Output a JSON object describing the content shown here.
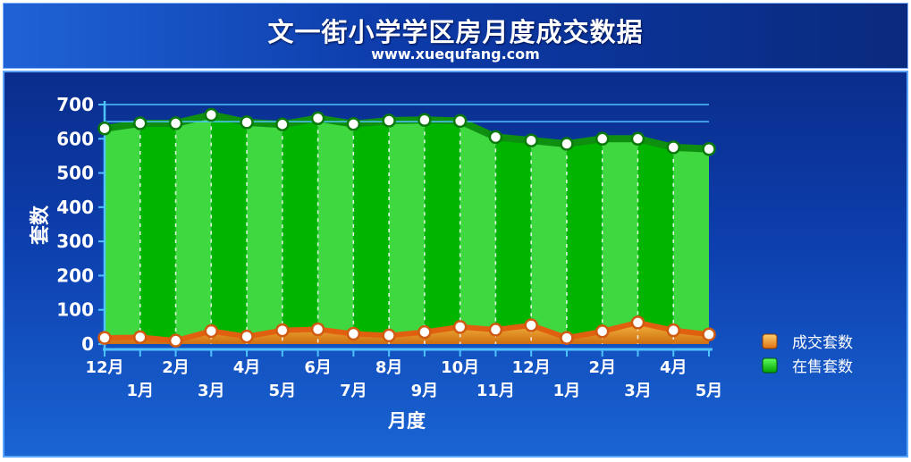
{
  "header": {
    "title": "文一街小学学区房月度成交数据",
    "subtitle": "www.xuequfang.com"
  },
  "colors": {
    "listing_dark": "#00b400",
    "listing_light": "#40d840",
    "listing_edge": "#0f8f10",
    "sales_fill": "#f0a020",
    "sales_edge": "#e06010",
    "axis": "#4fc3ff"
  },
  "chart_data": {
    "type": "area",
    "xlabel": "月度",
    "ylabel": "套数",
    "ylim": [
      0,
      700
    ],
    "yticks": [
      0,
      100,
      200,
      300,
      400,
      500,
      600,
      700
    ],
    "categories": [
      "12月",
      "1月",
      "2月",
      "3月",
      "4月",
      "5月",
      "6月",
      "7月",
      "8月",
      "9月",
      "10月",
      "11月",
      "12月",
      "1月",
      "2月",
      "3月",
      "4月",
      "5月"
    ],
    "series": [
      {
        "name": "成交套数",
        "values": [
          18,
          20,
          10,
          38,
          22,
          40,
          43,
          30,
          25,
          35,
          50,
          42,
          55,
          18,
          37,
          63,
          40,
          28
        ]
      },
      {
        "name": "在售套数",
        "values": [
          630,
          645,
          645,
          670,
          648,
          642,
          660,
          643,
          653,
          655,
          652,
          605,
          595,
          585,
          600,
          600,
          575,
          570
        ]
      }
    ],
    "legend_position": "right",
    "grid": false
  }
}
